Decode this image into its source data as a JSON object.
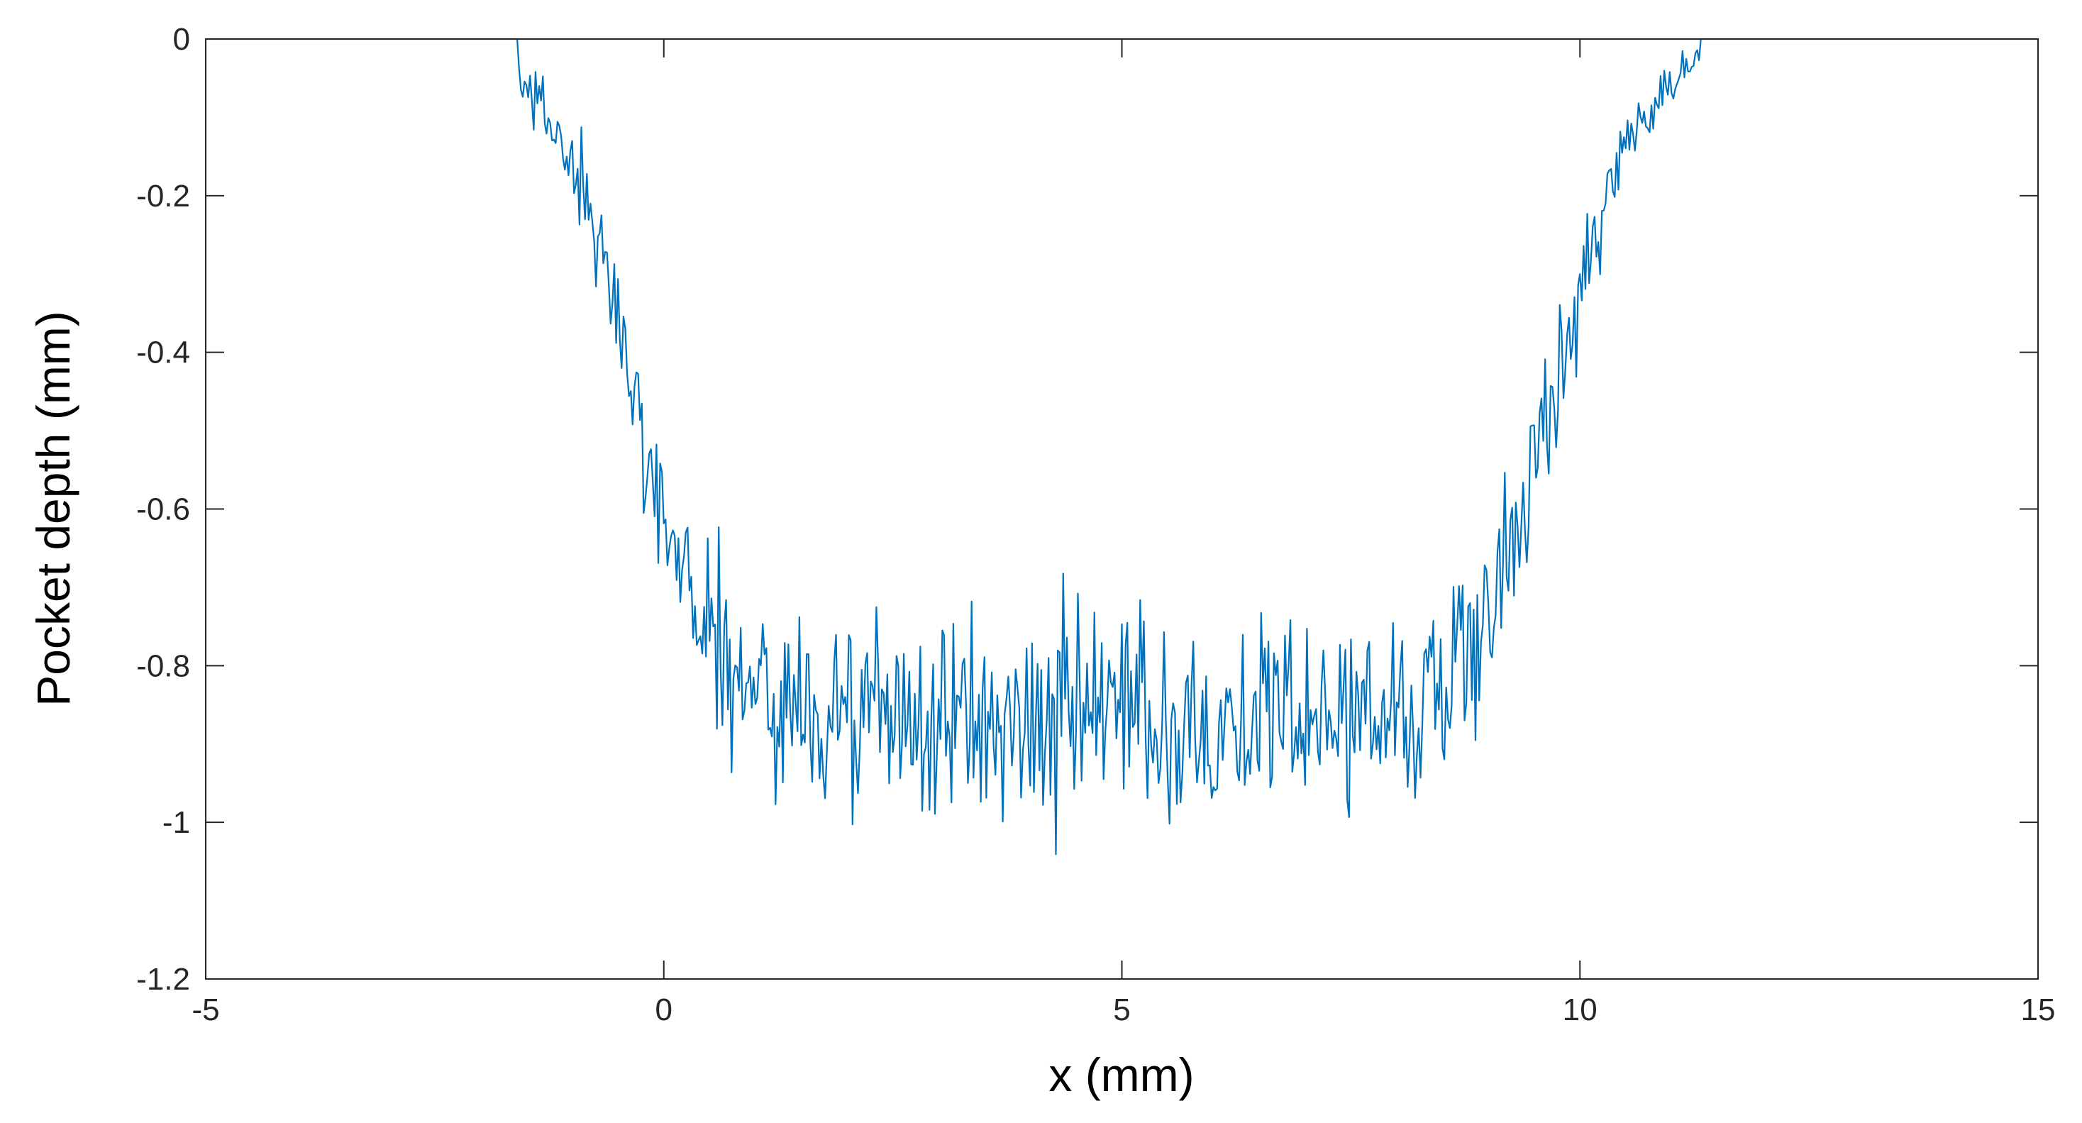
{
  "chart_data": {
    "type": "line",
    "title": "",
    "xlabel": "x (mm)",
    "ylabel": "Pocket depth (mm)",
    "xlim": [
      -5,
      15
    ],
    "ylim": [
      -1.2,
      0
    ],
    "xticks": [
      -5,
      0,
      5,
      10,
      15
    ],
    "xtick_labels": [
      "-5",
      "0",
      "5",
      "10",
      "15"
    ],
    "yticks": [
      0,
      -0.2,
      -0.4,
      -0.6,
      -0.8,
      -1,
      -1.2
    ],
    "ytick_labels": [
      "0",
      "-0.2",
      "-0.4",
      "-0.6",
      "-0.8",
      "-1",
      "-1.2"
    ],
    "grid": false,
    "box": true,
    "series": [
      {
        "color": "#0072BD",
        "profile": {
          "plateau_depth": -0.87,
          "left_wall_center_x": -0.35,
          "right_wall_center_x": 9.75,
          "wall_transition_width_mm": 0.45,
          "noise_amplitude_plateau": 0.09,
          "zero_until_x": -1.6,
          "zero_after_x": 11.3,
          "sample_step_mm": 0.02
        },
        "x": [
          -5,
          -2,
          -1.6,
          -1.2,
          -1.0,
          -0.8,
          -0.6,
          -0.4,
          -0.2,
          0.0,
          0.2,
          0.5,
          1.0,
          2.0,
          3.0,
          4.0,
          5.0,
          6.0,
          7.0,
          8.0,
          9.0,
          9.3,
          9.5,
          9.7,
          9.9,
          10.1,
          10.3,
          10.5,
          10.8,
          11.2,
          12,
          15
        ],
        "values": [
          0,
          0,
          0,
          -0.01,
          -0.04,
          -0.1,
          -0.2,
          -0.33,
          -0.48,
          -0.62,
          -0.74,
          -0.84,
          -0.88,
          -0.86,
          -0.87,
          -0.85,
          -0.88,
          -0.86,
          -0.87,
          -0.86,
          -0.84,
          -0.8,
          -0.7,
          -0.5,
          -0.3,
          -0.18,
          -0.1,
          -0.05,
          -0.02,
          0,
          0,
          0
        ]
      }
    ]
  }
}
